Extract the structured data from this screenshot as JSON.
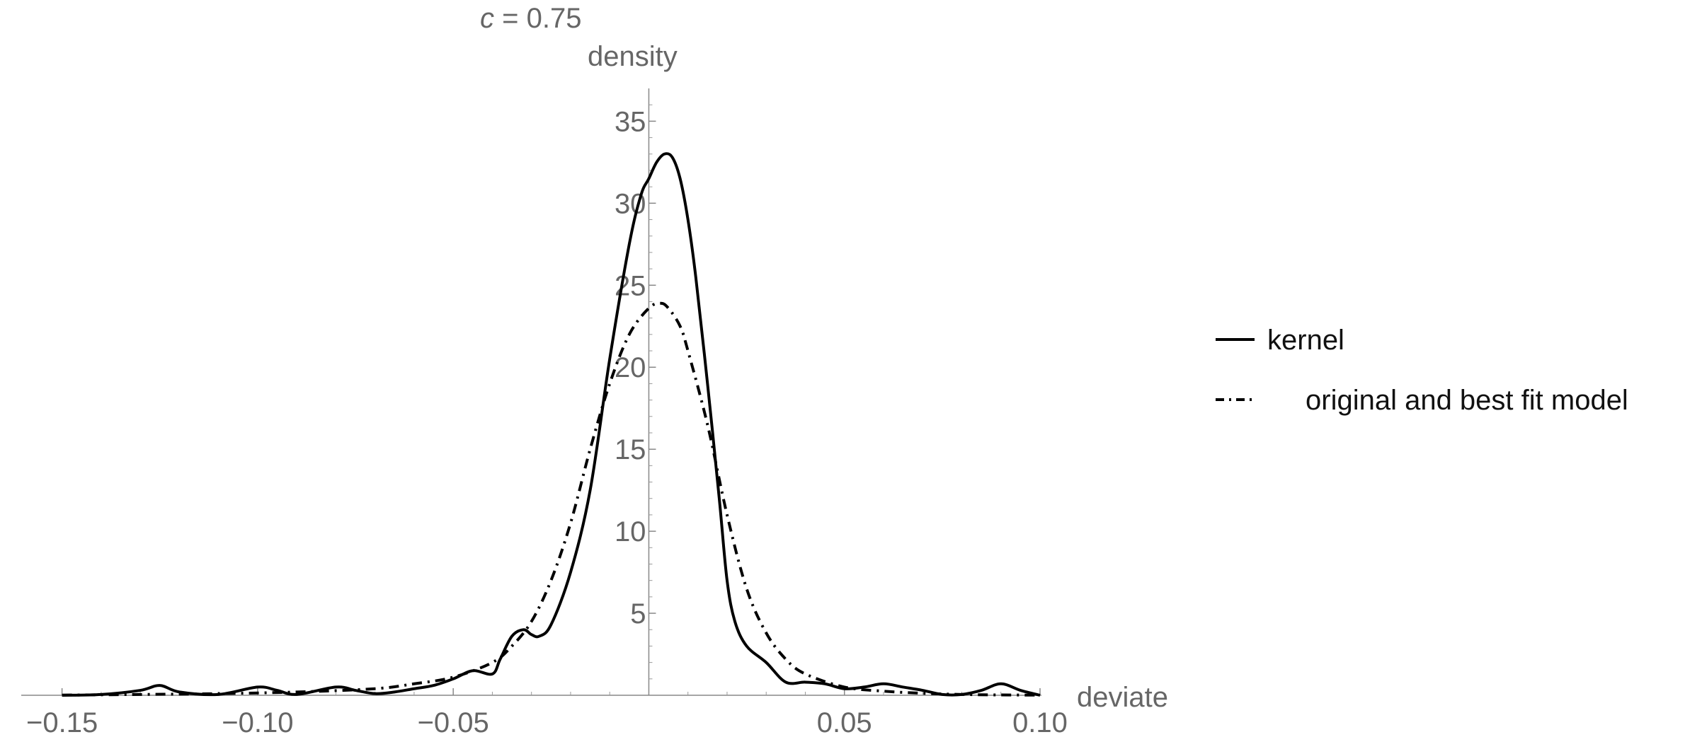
{
  "chart_data": {
    "type": "line",
    "title": "c = 0.75",
    "title_variable": "c",
    "title_rest": " = 0.75",
    "xlabel": "deviate",
    "ylabel": "density",
    "xlim": [
      -0.155,
      0.1
    ],
    "ylim": [
      0,
      37
    ],
    "x_ticks": [
      -0.15,
      -0.1,
      -0.05,
      0.05,
      0.1
    ],
    "x_tick_labels": [
      "−0.15",
      "−0.10",
      "−0.05",
      "0.05",
      "0.10"
    ],
    "y_ticks": [
      5,
      10,
      15,
      20,
      25,
      30,
      35
    ],
    "y_tick_labels": [
      "5",
      "10",
      "15",
      "20",
      "25",
      "30",
      "35"
    ],
    "grid": false,
    "legend_position": "right",
    "series": [
      {
        "name": "kernel",
        "style": "solid",
        "x": [
          -0.15,
          -0.14,
          -0.13,
          -0.125,
          -0.12,
          -0.11,
          -0.1,
          -0.095,
          -0.09,
          -0.08,
          -0.075,
          -0.07,
          -0.065,
          -0.06,
          -0.055,
          -0.05,
          -0.045,
          -0.04,
          -0.038,
          -0.035,
          -0.032,
          -0.03,
          -0.028,
          -0.025,
          -0.02,
          -0.015,
          -0.01,
          -0.005,
          -0.002,
          0.0,
          0.002,
          0.004,
          0.006,
          0.008,
          0.01,
          0.012,
          0.015,
          0.018,
          0.02,
          0.022,
          0.025,
          0.03,
          0.035,
          0.04,
          0.045,
          0.05,
          0.055,
          0.06,
          0.065,
          0.07,
          0.075,
          0.08,
          0.085,
          0.09,
          0.095,
          0.1
        ],
        "y": [
          0,
          0.05,
          0.3,
          0.6,
          0.2,
          0.05,
          0.5,
          0.3,
          0.05,
          0.5,
          0.3,
          0.1,
          0.2,
          0.4,
          0.6,
          1.0,
          1.5,
          1.3,
          2.2,
          3.6,
          4.0,
          3.7,
          3.6,
          4.3,
          7.5,
          12.5,
          20.5,
          27.5,
          30.5,
          31.5,
          32.5,
          33.0,
          32.8,
          31.5,
          29.0,
          25.5,
          19.0,
          12.0,
          7.0,
          4.5,
          3.0,
          2.0,
          0.8,
          0.8,
          0.7,
          0.4,
          0.5,
          0.7,
          0.5,
          0.3,
          0.05,
          0.05,
          0.3,
          0.7,
          0.3,
          0.0
        ]
      },
      {
        "name": "original and best fit model",
        "style": "dash-dot",
        "x": [
          -0.15,
          -0.13,
          -0.11,
          -0.09,
          -0.07,
          -0.06,
          -0.05,
          -0.04,
          -0.035,
          -0.03,
          -0.025,
          -0.02,
          -0.015,
          -0.01,
          -0.005,
          0.0,
          0.003,
          0.005,
          0.008,
          0.01,
          0.015,
          0.02,
          0.025,
          0.03,
          0.035,
          0.04,
          0.05,
          0.06,
          0.07,
          0.08,
          0.09,
          0.1
        ],
        "y": [
          0.01,
          0.05,
          0.1,
          0.2,
          0.4,
          0.7,
          1.1,
          2.0,
          3.0,
          4.5,
          7.0,
          10.5,
          15.0,
          19.0,
          22.0,
          23.6,
          23.9,
          23.6,
          22.5,
          21.0,
          16.5,
          11.0,
          6.5,
          3.8,
          2.2,
          1.3,
          0.5,
          0.25,
          0.12,
          0.05,
          0.02,
          0.01
        ]
      }
    ]
  }
}
